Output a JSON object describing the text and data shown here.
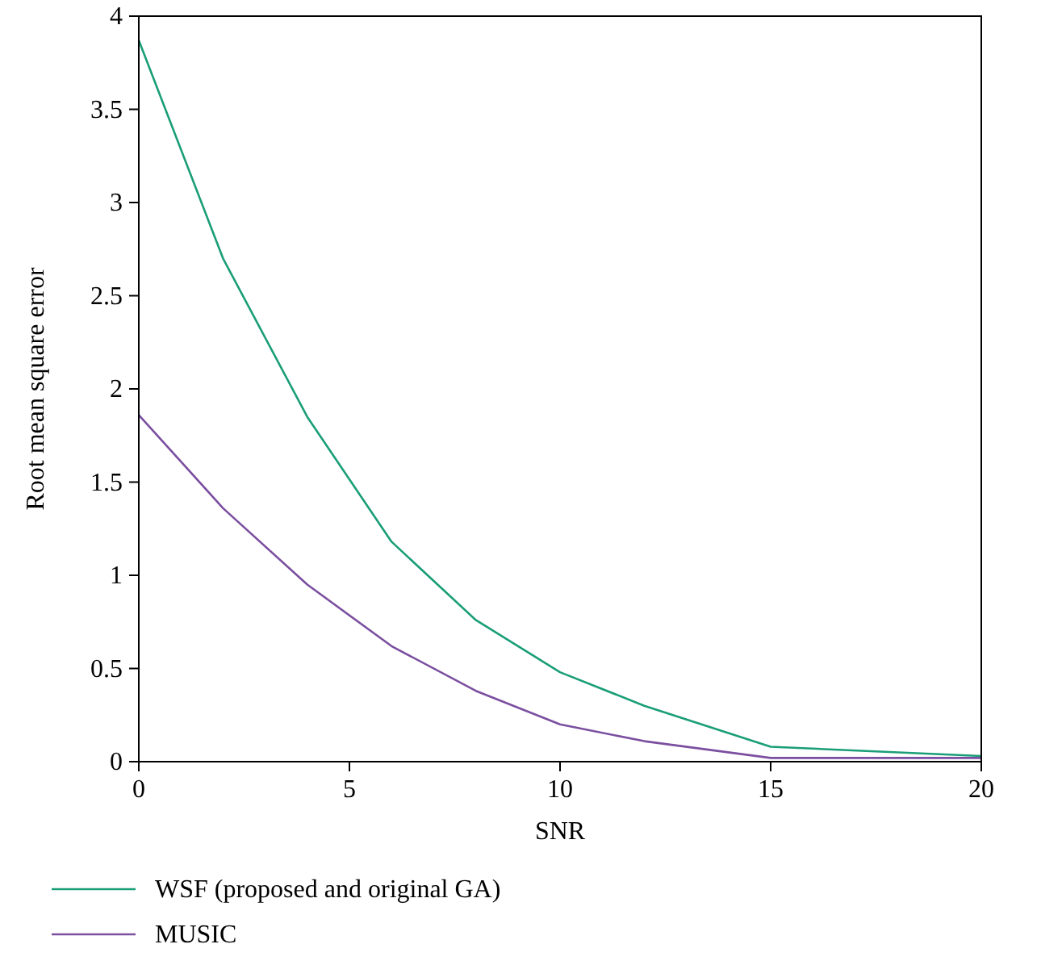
{
  "chart_data": {
    "type": "line",
    "xlabel": "SNR",
    "ylabel": "Root mean square error",
    "x": [
      0,
      2,
      4,
      6,
      8,
      10,
      12,
      15,
      20
    ],
    "xlim": [
      0,
      20
    ],
    "xticks": [
      0,
      5,
      10,
      15,
      20
    ],
    "ylim": [
      0,
      4
    ],
    "yticks": [
      0,
      0.5,
      1,
      1.5,
      2,
      2.5,
      3,
      3.5,
      4
    ],
    "series": [
      {
        "name": "WSF (proposed and original GA)",
        "color": "#1a9e77",
        "values": [
          3.87,
          2.7,
          1.85,
          1.18,
          0.76,
          0.48,
          0.3,
          0.08,
          0.03
        ]
      },
      {
        "name": "MUSIC",
        "color": "#7b4fa0",
        "values": [
          1.86,
          1.36,
          0.95,
          0.62,
          0.38,
          0.2,
          0.11,
          0.02,
          0.02
        ]
      }
    ],
    "legend": "bottom",
    "grid": false,
    "marker": "none",
    "line_style": "solid"
  }
}
